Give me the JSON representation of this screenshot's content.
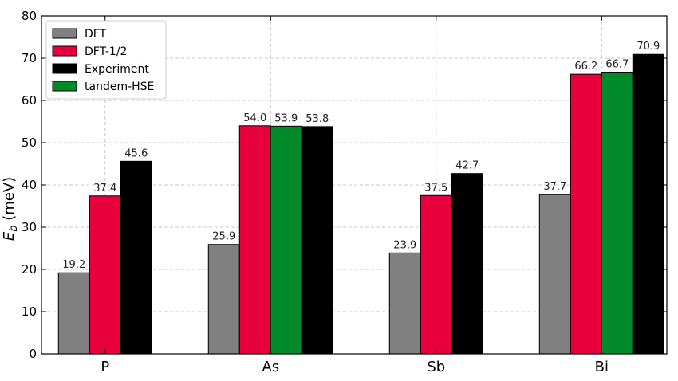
{
  "chart_data": {
    "type": "bar",
    "categories": [
      "P",
      "As",
      "Sb",
      "Bi"
    ],
    "series": [
      {
        "name": "DFT",
        "color": "#808080",
        "values": [
          19.2,
          25.9,
          23.9,
          37.7
        ],
        "labels": [
          "19.2",
          "25.9",
          "23.9",
          "37.7"
        ]
      },
      {
        "name": "DFT-1/2",
        "color": "#E8003C",
        "values": [
          37.4,
          54.0,
          37.5,
          66.2
        ],
        "labels": [
          "37.4",
          "54.0",
          "37.5",
          "66.2"
        ]
      },
      {
        "name": "Experiment",
        "color": "#000000",
        "values": [
          45.6,
          53.8,
          42.7,
          70.9
        ],
        "labels": [
          "45.6",
          "53.8",
          "42.7",
          "70.9"
        ]
      },
      {
        "name": "tandem-HSE",
        "color": "#008A2A",
        "values": [
          null,
          53.9,
          null,
          66.7
        ],
        "labels": [
          null,
          "53.9",
          null,
          "66.7"
        ]
      }
    ],
    "title": "",
    "xlabel": "",
    "ylabel": "E_b (meV)",
    "ylabel_main": "E",
    "ylabel_sub": "b",
    "ylabel_unit": " (meV)",
    "ylim": [
      0,
      80
    ],
    "yticks": [
      "0",
      "10",
      "20",
      "30",
      "40",
      "50",
      "60",
      "70",
      "80"
    ],
    "grid": true,
    "legend_position": "top-left"
  }
}
